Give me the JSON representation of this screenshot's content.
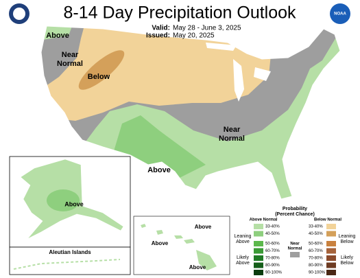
{
  "header": {
    "title": "8-14 Day Precipitation Outlook",
    "valid_label": "Valid:",
    "valid": "May 28 - June 3, 2025",
    "issued_label": "Issued:",
    "issued": "May 20, 2025",
    "logo_text": "NOAA"
  },
  "map_labels": [
    {
      "lines": [
        "Above"
      ]
    },
    {
      "lines": [
        "Near",
        "Normal"
      ]
    },
    {
      "lines": [
        "Below"
      ]
    },
    {
      "lines": [
        "Near",
        "Normal"
      ]
    },
    {
      "lines": [
        "Above"
      ]
    }
  ],
  "insets": {
    "alaska_label": "Above",
    "aleutian": "Aleutian Islands",
    "hawaii_labels": [
      "Above",
      "Above",
      "Above"
    ]
  },
  "legend": {
    "title": [
      "Probability",
      "(Percent Chance)"
    ],
    "above_header": "Above Normal",
    "below_header": "Below Normal",
    "near": [
      "Near",
      "Normal"
    ],
    "ranges": [
      "33-40%",
      "40-50%",
      "50-60%",
      "60-70%",
      "70-80%",
      "80-90%",
      "90-100%"
    ],
    "above_leaning": [
      "Leaning",
      "Above"
    ],
    "above_likely": [
      "Likely",
      "Above"
    ],
    "below_leaning": [
      "Leaning",
      "Below"
    ],
    "below_likely": [
      "Likely",
      "Below"
    ]
  }
}
